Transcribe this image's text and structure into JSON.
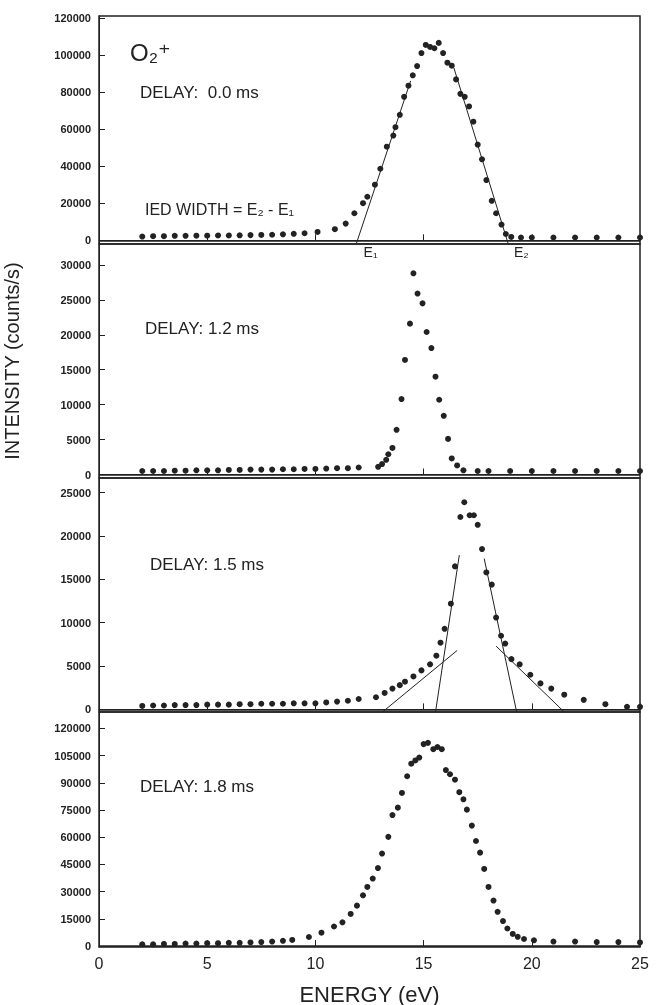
{
  "chart_data": [
    {
      "type": "scatter",
      "annotations": [
        "O₂⁺",
        "DELAY:  0.0 ms",
        "IED WIDTH = E₂ - E₁",
        {
          "text": "E₁",
          "x": 11.95,
          "y": 0
        },
        {
          "text": "E₂",
          "x": 18.9,
          "y": 0
        }
      ],
      "xlim": [
        0,
        25
      ],
      "xticks": [
        0,
        5,
        10,
        15,
        20,
        25
      ],
      "ylim": [
        -2000,
        121000
      ],
      "yticks": [
        0,
        20000,
        40000,
        60000,
        80000,
        100000,
        120000
      ],
      "tick_labels": "y",
      "marker": "circle",
      "ref_lines": [
        {
          "axis": "y",
          "value": 0,
          "color": "#222222"
        }
      ],
      "series": [
        {
          "color": "#222222",
          "x": [
            2,
            2.5,
            3,
            3.5,
            4,
            4.5,
            5,
            5.5,
            6,
            6.5,
            7,
            7.5,
            8,
            8.5,
            9,
            9.5,
            10.1,
            10.9,
            11.4,
            11.8,
            12.2,
            12.4,
            12.75,
            13.0,
            13.3,
            13.6,
            13.7,
            13.9,
            14.1,
            14.3,
            14.5,
            14.7,
            14.9,
            15.1,
            15.3,
            15.5,
            15.7,
            15.9,
            16.1,
            16.3,
            16.5,
            16.7,
            16.9,
            17.1,
            17.3,
            17.5,
            17.7,
            17.9,
            18.15,
            18.35,
            18.6,
            18.8,
            19.05,
            19.5,
            20,
            21,
            22,
            23,
            24,
            25
          ],
          "values": [
            2000,
            2200,
            2200,
            2400,
            2400,
            2500,
            2500,
            2600,
            2600,
            2700,
            2800,
            2900,
            3000,
            3200,
            3500,
            3800,
            4500,
            6000,
            9000,
            14600,
            20000,
            23500,
            30000,
            38600,
            50500,
            56500,
            61000,
            67700,
            77400,
            83400,
            89000,
            94000,
            101000,
            105400,
            104300,
            103600,
            106500,
            101000,
            95800,
            94200,
            86800,
            79000,
            77400,
            72200,
            64000,
            51600,
            43700,
            32500,
            21300,
            14600,
            8500,
            3400,
            1800,
            1500,
            1500,
            1500,
            1500,
            1500,
            1500,
            1500
          ]
        },
        {
          "type": "line",
          "marker": "none",
          "color": "#222222",
          "x": [
            11.9,
            14.4
          ],
          "values": [
            -1500,
            86000
          ]
        },
        {
          "type": "line",
          "marker": "none",
          "color": "#222222",
          "x": [
            16.4,
            18.9
          ],
          "values": [
            93000,
            -1500
          ]
        }
      ]
    },
    {
      "type": "scatter",
      "ylabel": "INTENSITY (counts/s)",
      "annotations": [
        "DELAY: 1.2 ms"
      ],
      "xlim": [
        0,
        25
      ],
      "xticks": [
        0,
        5,
        10,
        15,
        20,
        25
      ],
      "ylim": [
        -500,
        33000
      ],
      "yticks": [
        0,
        5000,
        10000,
        15000,
        20000,
        25000,
        30000
      ],
      "tick_labels": "y",
      "marker": "circle",
      "ref_lines": [
        {
          "axis": "y",
          "value": 0,
          "color": "#222222"
        }
      ],
      "series": [
        {
          "color": "#222222",
          "x": [
            2,
            2.5,
            3,
            3.5,
            4,
            4.5,
            5,
            5.5,
            6,
            6.5,
            7,
            7.5,
            8,
            8.5,
            9,
            9.5,
            10,
            10.5,
            11,
            11.5,
            12,
            12.9,
            13.08,
            13.27,
            13.37,
            13.56,
            13.75,
            13.98,
            14.14,
            14.37,
            14.53,
            14.72,
            14.95,
            15.14,
            15.36,
            15.55,
            15.72,
            15.93,
            16.13,
            16.3,
            16.55,
            16.84,
            17.5,
            18,
            19,
            20,
            21,
            22,
            23,
            24,
            25
          ],
          "values": [
            500,
            500,
            500,
            550,
            550,
            600,
            600,
            600,
            650,
            650,
            700,
            700,
            700,
            750,
            750,
            800,
            800,
            850,
            900,
            900,
            1000,
            1100,
            1500,
            2100,
            2900,
            3800,
            6400,
            10800,
            16400,
            21600,
            28800,
            25900,
            24500,
            20400,
            18100,
            14000,
            10700,
            8400,
            5100,
            2300,
            1300,
            600,
            500,
            500,
            500,
            500,
            500,
            500,
            500,
            500,
            500
          ]
        }
      ]
    },
    {
      "type": "scatter",
      "annotations": [
        "DELAY: 1.5 ms"
      ],
      "xlim": [
        0,
        25
      ],
      "xticks": [
        0,
        5,
        10,
        15,
        20,
        25
      ],
      "ylim": [
        -300,
        26700
      ],
      "yticks": [
        0,
        5000,
        10000,
        15000,
        20000,
        25000
      ],
      "tick_labels": "y",
      "marker": "circle",
      "ref_lines": [
        {
          "axis": "y",
          "value": 0,
          "color": "#222222"
        }
      ],
      "series": [
        {
          "color": "#222222",
          "x": [
            2,
            2.5,
            3,
            3.5,
            4,
            4.5,
            5,
            5.5,
            6,
            6.5,
            7,
            7.5,
            8,
            8.5,
            9,
            9.5,
            10,
            10.5,
            11,
            11.5,
            12,
            12.8,
            13.2,
            13.56,
            13.9,
            14.14,
            14.53,
            14.9,
            15.3,
            15.59,
            15.78,
            15.97,
            16.26,
            16.45,
            16.7,
            16.88,
            17.13,
            17.32,
            17.5,
            17.7,
            17.9,
            18.15,
            18.35,
            18.58,
            18.77,
            19.06,
            19.44,
            19.93,
            20.4,
            20.9,
            21.5,
            22.4,
            23.4,
            24.4,
            25
          ],
          "values": [
            400,
            450,
            450,
            500,
            500,
            500,
            550,
            550,
            550,
            600,
            600,
            650,
            650,
            650,
            700,
            700,
            700,
            800,
            900,
            1000,
            1200,
            1400,
            1900,
            2400,
            2800,
            3200,
            3800,
            4500,
            5200,
            6200,
            7700,
            9300,
            12200,
            16500,
            22200,
            23900,
            22400,
            22400,
            21300,
            18500,
            15800,
            14400,
            10600,
            8500,
            7600,
            5800,
            5200,
            4000,
            3000,
            2400,
            1700,
            1100,
            600,
            300,
            300
          ]
        },
        {
          "type": "line",
          "marker": "none",
          "color": "#222222",
          "x": [
            13.1,
            16.55
          ],
          "values": [
            -300,
            6800
          ]
        },
        {
          "type": "line",
          "marker": "none",
          "color": "#222222",
          "x": [
            15.55,
            16.65
          ],
          "values": [
            -300,
            17800
          ]
        },
        {
          "type": "line",
          "marker": "none",
          "color": "#222222",
          "x": [
            17.8,
            19.3
          ],
          "values": [
            17400,
            -300
          ]
        },
        {
          "type": "line",
          "marker": "none",
          "color": "#222222",
          "x": [
            18.35,
            21.5
          ],
          "values": [
            7300,
            -300
          ]
        }
      ]
    },
    {
      "type": "scatter",
      "xlabel": "ENERGY (eV)",
      "annotations": [
        "DELAY: 1.8 ms"
      ],
      "xlim": [
        0,
        25
      ],
      "xticks": [
        0,
        5,
        10,
        15,
        20,
        25
      ],
      "ylim": [
        -500,
        129000
      ],
      "yticks": [
        0,
        15000,
        30000,
        45000,
        60000,
        75000,
        90000,
        105000,
        120000
      ],
      "marker": "circle",
      "ref_lines": [
        {
          "axis": "y",
          "value": 0,
          "color": "#222222"
        }
      ],
      "series": [
        {
          "color": "#222222",
          "x": [
            2,
            2.5,
            3,
            3.5,
            4,
            4.5,
            5,
            5.5,
            6,
            6.5,
            7,
            7.5,
            8,
            8.5,
            8.93,
            9.7,
            10.28,
            10.86,
            11.25,
            11.63,
            11.92,
            12.2,
            12.4,
            12.65,
            12.89,
            13.08,
            13.37,
            13.56,
            13.81,
            14.0,
            14.24,
            14.43,
            14.62,
            14.8,
            15.0,
            15.2,
            15.45,
            15.64,
            15.84,
            16.03,
            16.22,
            16.45,
            16.65,
            16.84,
            17.0,
            17.23,
            17.42,
            17.61,
            17.8,
            18.0,
            18.23,
            18.42,
            18.67,
            18.87,
            19.12,
            19.35,
            19.64,
            20.1,
            21,
            22,
            23,
            24,
            25
          ],
          "values": [
            1000,
            1000,
            1200,
            1200,
            1400,
            1400,
            1600,
            1600,
            1800,
            1800,
            2000,
            2200,
            2500,
            2900,
            3400,
            5000,
            7400,
            10800,
            13100,
            17700,
            22300,
            28000,
            32600,
            37200,
            43000,
            51000,
            60200,
            72200,
            76300,
            84400,
            93600,
            100500,
            102300,
            103900,
            111300,
            112000,
            108500,
            109700,
            108500,
            97000,
            94700,
            91700,
            84800,
            80900,
            75200,
            66400,
            57900,
            51500,
            42500,
            32600,
            25100,
            18900,
            13800,
            9700,
            6700,
            5100,
            3900,
            3200,
            2500,
            2500,
            2200,
            2200,
            2000
          ]
        }
      ]
    }
  ]
}
